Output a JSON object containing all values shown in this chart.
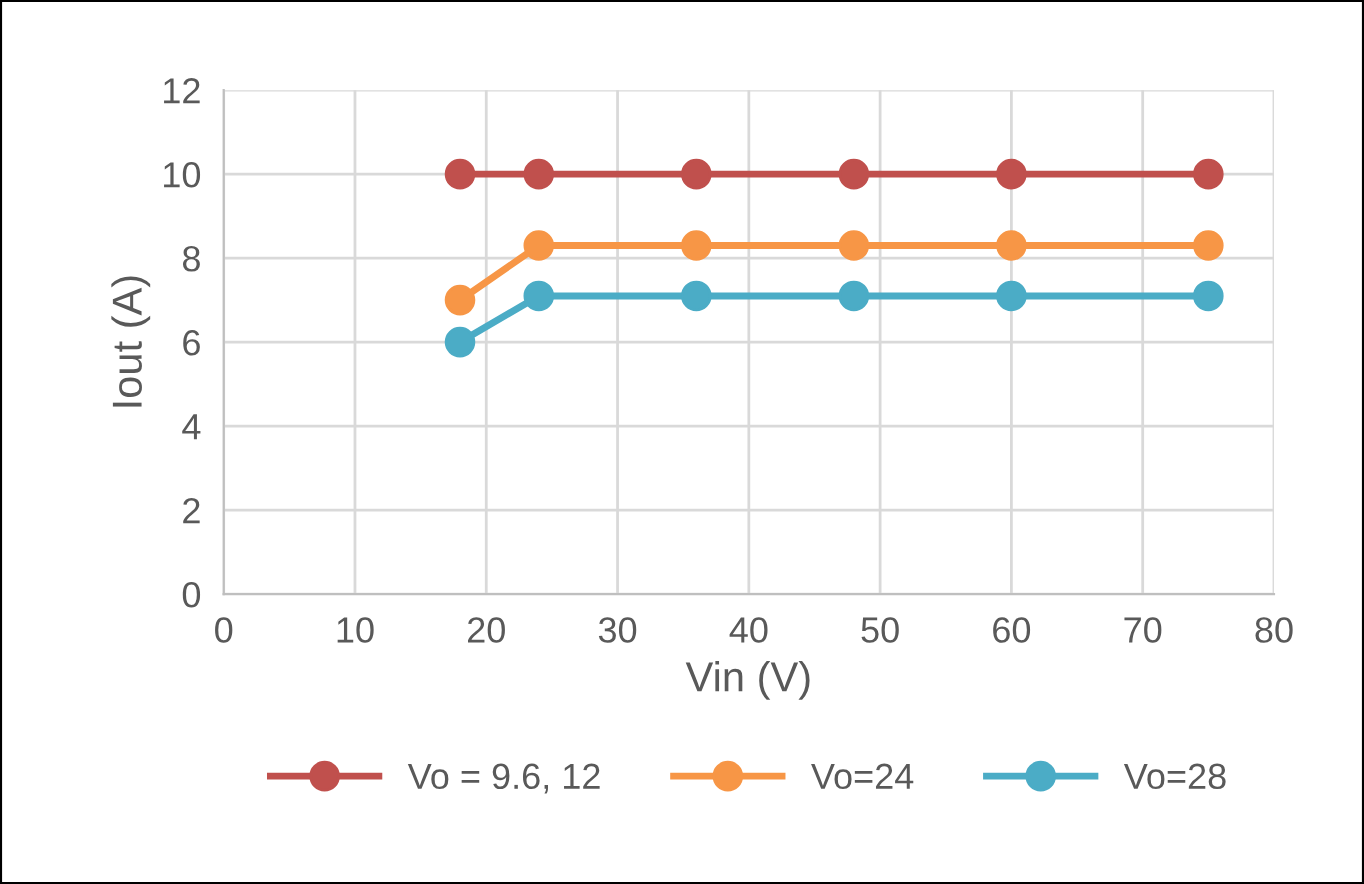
{
  "chart_data": {
    "type": "line",
    "xlabel": "Vin (V)",
    "ylabel": "Iout (A)",
    "x": [
      18,
      24,
      36,
      48,
      60,
      75
    ],
    "series": [
      {
        "name": "Vo = 9.6, 12",
        "color": "#c0504d",
        "values": [
          10,
          10,
          10,
          10,
          10,
          10
        ]
      },
      {
        "name": "Vo=24",
        "color": "#f79646",
        "values": [
          7,
          8.3,
          8.3,
          8.3,
          8.3,
          8.3
        ]
      },
      {
        "name": "Vo=28",
        "color": "#4bacc6",
        "values": [
          6,
          7.1,
          7.1,
          7.1,
          7.1,
          7.1
        ]
      }
    ],
    "xlim": [
      0,
      80
    ],
    "xticks": [
      0,
      10,
      20,
      30,
      40,
      50,
      60,
      70,
      80
    ],
    "ylim": [
      0,
      12
    ],
    "yticks": [
      0,
      2,
      4,
      6,
      8,
      10,
      12
    ],
    "grid": true,
    "legend": "bottom",
    "marker": "circle",
    "line_style": "solid"
  }
}
